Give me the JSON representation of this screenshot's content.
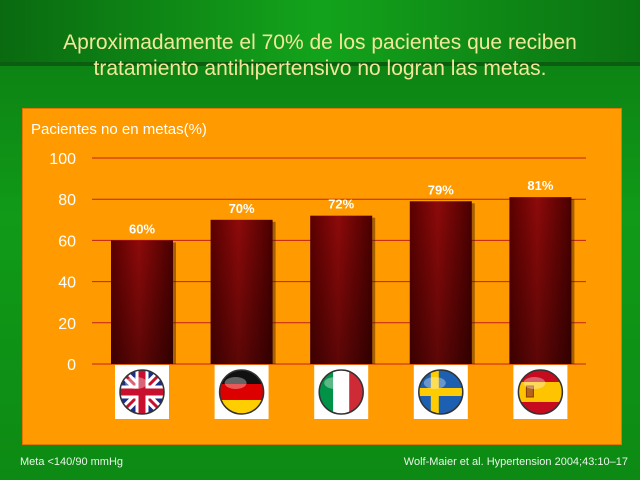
{
  "slide": {
    "title_line1": "Aproximadamente el 70% de los pacientes que reciben",
    "title_line2": "tratamiento antihipertensivo no logran las metas.",
    "footnote_left": "Meta <140/90 mmHg",
    "footnote_right": "Wolf-Maier et al. Hypertension 2004;43:10–17"
  },
  "colors": {
    "panel": "#ff9a00",
    "bar": "#7a0000",
    "gridline": "#c02020",
    "title": "#f3e79a"
  },
  "chart_data": {
    "type": "bar",
    "ylabel": "Pacientes no en metas(%)",
    "ylim": [
      0,
      100
    ],
    "yticks": [
      0,
      20,
      40,
      60,
      80,
      100
    ],
    "categories": [
      "united-kingdom-flag",
      "germany-flag",
      "italy-flag",
      "sweden-flag",
      "spain-flag"
    ],
    "values": [
      60,
      70,
      72,
      79,
      81
    ],
    "value_labels": [
      "60%",
      "70%",
      "72%",
      "79%",
      "81%"
    ],
    "grid": true
  }
}
